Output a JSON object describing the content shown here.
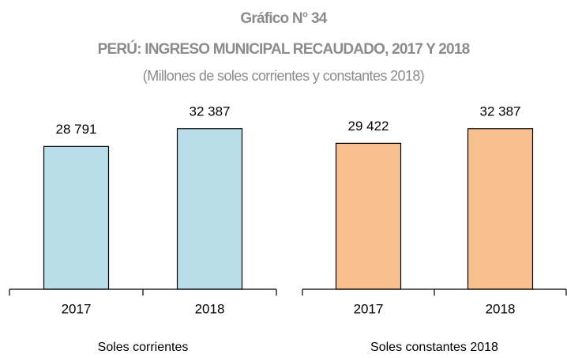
{
  "header": {
    "label": "Gráfico N° 34",
    "title": "PERÚ: INGRESO MUNICIPAL RECAUDADO, 2017 Y 2018",
    "subtitle": "(Millones de soles corrientes y constantes 2018)"
  },
  "chart_data": [
    {
      "type": "bar",
      "xlabel": "Soles corrientes",
      "categories": [
        "2017",
        "2018"
      ],
      "values": [
        28791,
        32387
      ],
      "value_labels": [
        "28 791",
        "32 387"
      ],
      "color": "#b9dde9",
      "ylim": [
        0,
        40000
      ]
    },
    {
      "type": "bar",
      "xlabel": "Soles constantes 2018",
      "categories": [
        "2017",
        "2018"
      ],
      "values": [
        29422,
        32387
      ],
      "value_labels": [
        "29 422",
        "32 387"
      ],
      "color": "#f9c08f",
      "ylim": [
        0,
        40000
      ]
    }
  ]
}
